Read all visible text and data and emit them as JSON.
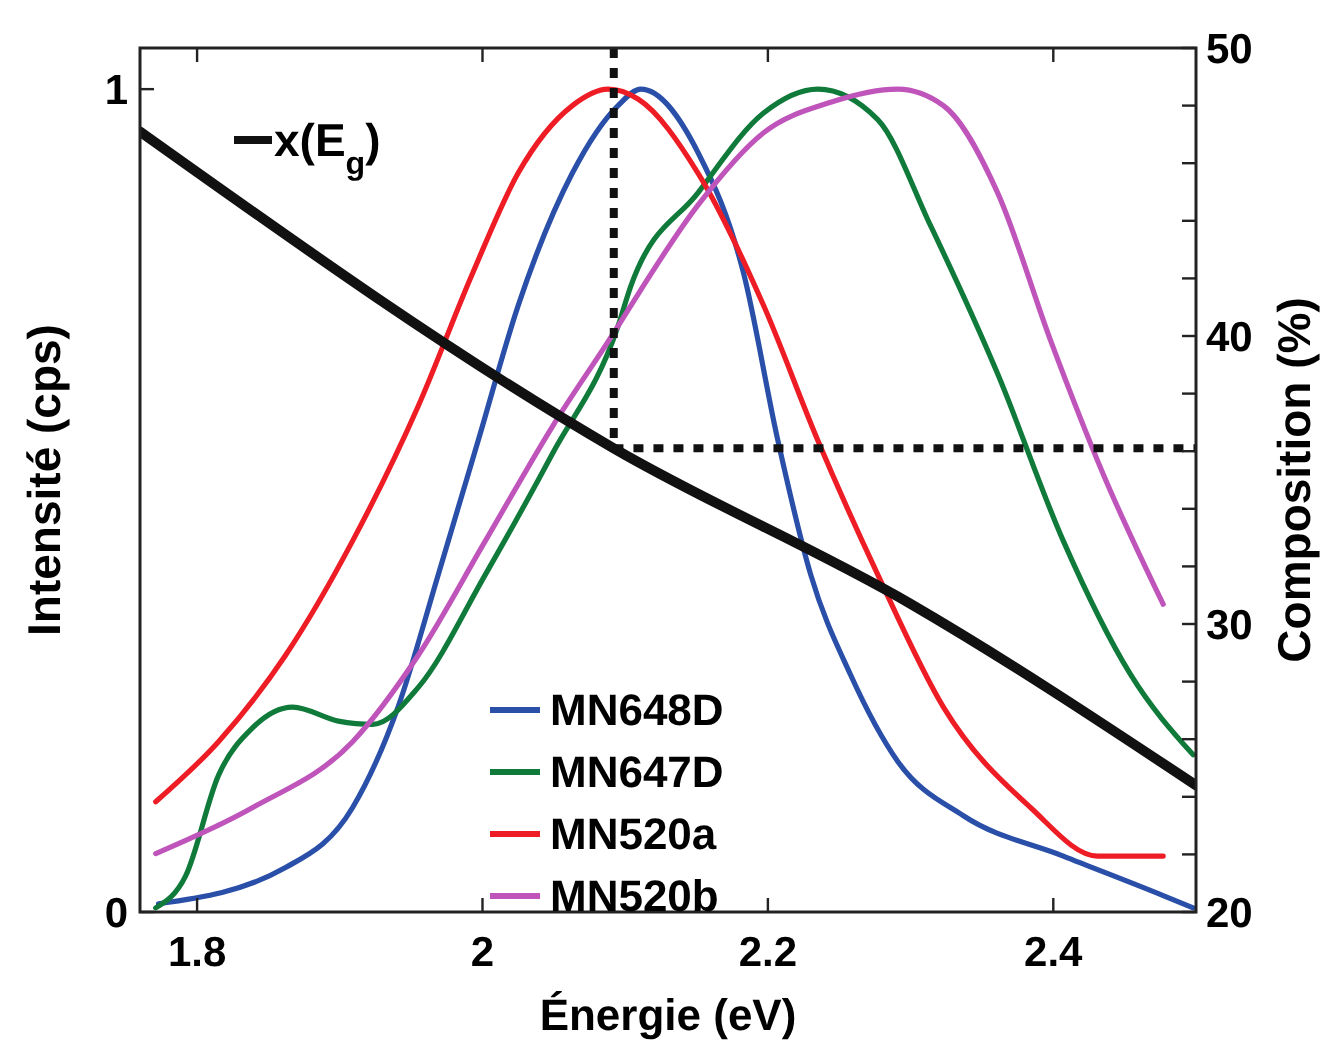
{
  "chart_data": {
    "type": "line",
    "xlabel": "Énergie (eV)",
    "ylabel": "Intensité (cps)",
    "y2label": "Composition (%)",
    "xlim": [
      1.76,
      2.5
    ],
    "xticks": [
      1.8,
      2,
      2.2,
      2.4
    ],
    "ylim": [
      0,
      1.05
    ],
    "yticks": [
      0,
      1
    ],
    "y2lim": [
      20,
      50
    ],
    "y2ticks": [
      20,
      {
        "value": 22,
        "label": null
      },
      {
        "value": 24,
        "label": null
      },
      {
        "value": 26,
        "label": null
      },
      {
        "value": 28,
        "label": null
      },
      30,
      {
        "value": 32,
        "label": null
      },
      {
        "value": 34,
        "label": null
      },
      {
        "value": 36,
        "label": null
      },
      {
        "value": 38,
        "label": null
      },
      40,
      {
        "value": 42,
        "label": null
      },
      {
        "value": 44,
        "label": null
      },
      {
        "value": 46,
        "label": null
      },
      {
        "value": 48,
        "label": null
      },
      50
    ],
    "legend": "bottom",
    "grid": false,
    "line_style": "solid",
    "marker": "none",
    "series": [
      {
        "name": "MN648D",
        "color": "#2a4fa8",
        "x": [
          1.773,
          1.862,
          1.909,
          1.941,
          1.969,
          1.997,
          2.025,
          2.063,
          2.095,
          2.111,
          2.151,
          2.183,
          2.207,
          2.23,
          2.258,
          2.291,
          2.337,
          2.407,
          2.477,
          2.498
        ],
        "values": [
          0.01,
          0.054,
          0.127,
          0.25,
          0.41,
          0.573,
          0.737,
          0.898,
          0.98,
          1.0,
          0.923,
          0.776,
          0.573,
          0.41,
          0.288,
          0.183,
          0.117,
          0.068,
          0.02,
          0.005
        ]
      },
      {
        "name": "MN647D",
        "color": "#0f7a3a",
        "x": [
          1.771,
          1.792,
          1.815,
          1.839,
          1.867,
          1.899,
          1.923,
          1.955,
          2.002,
          2.049,
          2.095,
          2.104,
          2.151,
          2.197,
          2.235,
          2.277,
          2.314,
          2.361,
          2.407,
          2.454,
          2.498
        ],
        "values": [
          0.005,
          0.044,
          0.166,
          0.224,
          0.249,
          0.232,
          0.228,
          0.273,
          0.41,
          0.557,
          0.712,
          0.761,
          0.874,
          0.971,
          1.0,
          0.963,
          0.834,
          0.654,
          0.451,
          0.289,
          0.191
        ]
      },
      {
        "name": "MN520a",
        "color": "#ee1c24",
        "x": [
          1.771,
          1.815,
          1.862,
          1.909,
          1.955,
          1.993,
          2.025,
          2.063,
          2.088,
          2.109,
          2.151,
          2.197,
          2.235,
          2.277,
          2.323,
          2.384,
          2.431,
          2.477
        ],
        "values": [
          0.134,
          0.207,
          0.312,
          0.451,
          0.615,
          0.776,
          0.898,
          0.98,
          1.0,
          0.988,
          0.898,
          0.737,
          0.573,
          0.41,
          0.249,
          0.127,
          0.068,
          0.068
        ]
      },
      {
        "name": "MN520b",
        "color": "#bf55bb",
        "x": [
          1.771,
          1.839,
          1.909,
          1.955,
          2.002,
          2.049,
          2.095,
          2.104,
          2.151,
          2.197,
          2.244,
          2.291,
          2.323,
          2.361,
          2.398,
          2.435,
          2.477
        ],
        "values": [
          0.071,
          0.127,
          0.207,
          0.312,
          0.451,
          0.59,
          0.712,
          0.737,
          0.859,
          0.947,
          0.984,
          1.0,
          0.98,
          0.874,
          0.695,
          0.532,
          0.374
        ]
      },
      {
        "name": "x(E$_{g}$)",
        "color": "#111111",
        "axis": "y2",
        "x": [
          1.76,
          2.092,
          2.3,
          2.5
        ],
        "values": [
          47.1,
          36.1,
          30.7,
          24.4
        ]
      },
      {
        "color": "#111111",
        "axis": "y2",
        "line_style": "dotted",
        "x": [
          2.092,
          2.092,
          2.5
        ],
        "values": [
          50,
          36.1,
          36.1
        ]
      }
    ]
  }
}
